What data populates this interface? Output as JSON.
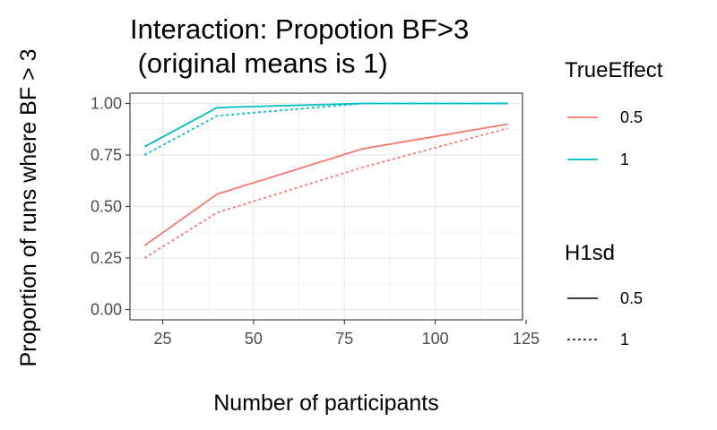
{
  "chart_data": {
    "type": "line",
    "title_line1": "Interaction: Propotion BF>3",
    "title_line2": " (original means is 1)",
    "xlabel": "Number of participants",
    "ylabel": "Proportion of runs where BF > 3",
    "xlim": [
      16,
      124
    ],
    "ylim": [
      -0.05,
      1.05
    ],
    "x_ticks": [
      25,
      50,
      75,
      100,
      125
    ],
    "x_tick_labels": [
      "25",
      "50",
      "75",
      "100",
      "125"
    ],
    "y_ticks": [
      0,
      0.25,
      0.5,
      0.75,
      1
    ],
    "y_tick_labels": [
      "0.00",
      "0.25",
      "0.50",
      "0.75",
      "1.00"
    ],
    "grid": true,
    "legend_position": "right",
    "color_legend": {
      "title": "TrueEffect",
      "entries": [
        {
          "label": "0.5",
          "color": "#F8766D"
        },
        {
          "label": "1",
          "color": "#00BFC4"
        }
      ]
    },
    "linetype_legend": {
      "title": "H1sd",
      "entries": [
        {
          "label": "0.5",
          "linetype": "solid"
        },
        {
          "label": "1",
          "linetype": "dotted"
        }
      ]
    },
    "series": [
      {
        "true_effect": "0.5",
        "h1sd": "0.5",
        "color": "#F8766D",
        "linetype": "solid",
        "x": [
          20,
          40,
          80,
          120
        ],
        "y": [
          0.31,
          0.56,
          0.78,
          0.9
        ]
      },
      {
        "true_effect": "0.5",
        "h1sd": "1",
        "color": "#F8766D",
        "linetype": "dotted",
        "x": [
          20,
          40,
          80,
          120
        ],
        "y": [
          0.25,
          0.47,
          0.69,
          0.88
        ]
      },
      {
        "true_effect": "1",
        "h1sd": "0.5",
        "color": "#00BFC4",
        "linetype": "solid",
        "x": [
          20,
          40,
          80,
          120
        ],
        "y": [
          0.79,
          0.98,
          1.0,
          1.0
        ]
      },
      {
        "true_effect": "1",
        "h1sd": "1",
        "color": "#00BFC4",
        "linetype": "dotted",
        "x": [
          20,
          40,
          80,
          120
        ],
        "y": [
          0.75,
          0.94,
          1.0,
          1.0
        ]
      }
    ]
  }
}
